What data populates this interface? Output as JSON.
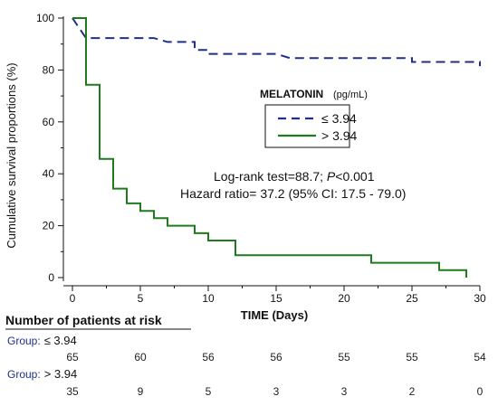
{
  "chart_data": {
    "type": "line",
    "subtype": "kaplan-meier-step",
    "xlabel": "TIME (Days)",
    "ylabel": "Cumulative survival proportions (%)",
    "xlim": [
      0,
      30
    ],
    "ylim": [
      0,
      100
    ],
    "x_ticks": [
      0,
      5,
      10,
      15,
      20,
      25,
      30
    ],
    "y_ticks": [
      0,
      20,
      40,
      60,
      80,
      100
    ],
    "grid": false,
    "legend": {
      "title": "MELATONIN",
      "unit": "(pg/mL)",
      "placement": "center-right",
      "entries": [
        "≤ 3.94",
        "> 3.94"
      ]
    },
    "series": [
      {
        "name": "≤ 3.94",
        "color": "#1f2f8a",
        "dash": "dashed",
        "steps": [
          [
            0,
            100
          ],
          [
            1,
            92.3
          ],
          [
            6,
            92.3
          ],
          [
            7,
            90.8
          ],
          [
            9,
            90.8
          ],
          [
            9,
            87.7
          ],
          [
            10,
            87.7
          ],
          [
            10,
            86.2
          ],
          [
            15,
            86.2
          ],
          [
            16,
            84.6
          ],
          [
            25,
            84.6
          ],
          [
            25,
            83.1
          ],
          [
            30,
            83.1
          ],
          [
            30,
            81.5
          ]
        ]
      },
      {
        "name": "> 3.94",
        "color": "#1e7b1e",
        "dash": "solid",
        "steps": [
          [
            0,
            100
          ],
          [
            1,
            100
          ],
          [
            1,
            74.3
          ],
          [
            2,
            74.3
          ],
          [
            2,
            45.7
          ],
          [
            3,
            45.7
          ],
          [
            3,
            34.3
          ],
          [
            4,
            34.3
          ],
          [
            4,
            28.6
          ],
          [
            5,
            28.6
          ],
          [
            5,
            25.7
          ],
          [
            6,
            25.7
          ],
          [
            6,
            22.9
          ],
          [
            7,
            22.9
          ],
          [
            7,
            20.0
          ],
          [
            9,
            20.0
          ],
          [
            9,
            17.1
          ],
          [
            10,
            17.1
          ],
          [
            10,
            14.3
          ],
          [
            12,
            14.3
          ],
          [
            12,
            8.6
          ],
          [
            22,
            8.6
          ],
          [
            22,
            5.7
          ],
          [
            27,
            5.7
          ],
          [
            27,
            2.9
          ],
          [
            29,
            2.9
          ],
          [
            29,
            0
          ]
        ]
      }
    ],
    "annotations": {
      "logrank": "Log-rank test=88.7; ",
      "p_label": "P",
      "p_value": "<0.001",
      "hazard": "Hazard ratio= 37.2 (95% CI: 17.5 - 79.0)"
    },
    "risk_table": {
      "title": "Number of patients at risk",
      "group_prefix": "Group:",
      "times": [
        0,
        5,
        10,
        15,
        20,
        25,
        30
      ],
      "groups": [
        {
          "label": "≤ 3.94",
          "counts": [
            "65",
            "60",
            "56",
            "56",
            "55",
            "55",
            "54"
          ]
        },
        {
          "label": "> 3.94",
          "counts": [
            "35",
            "9",
            "5",
            "3",
            "3",
            "2",
            "0"
          ]
        }
      ]
    }
  }
}
